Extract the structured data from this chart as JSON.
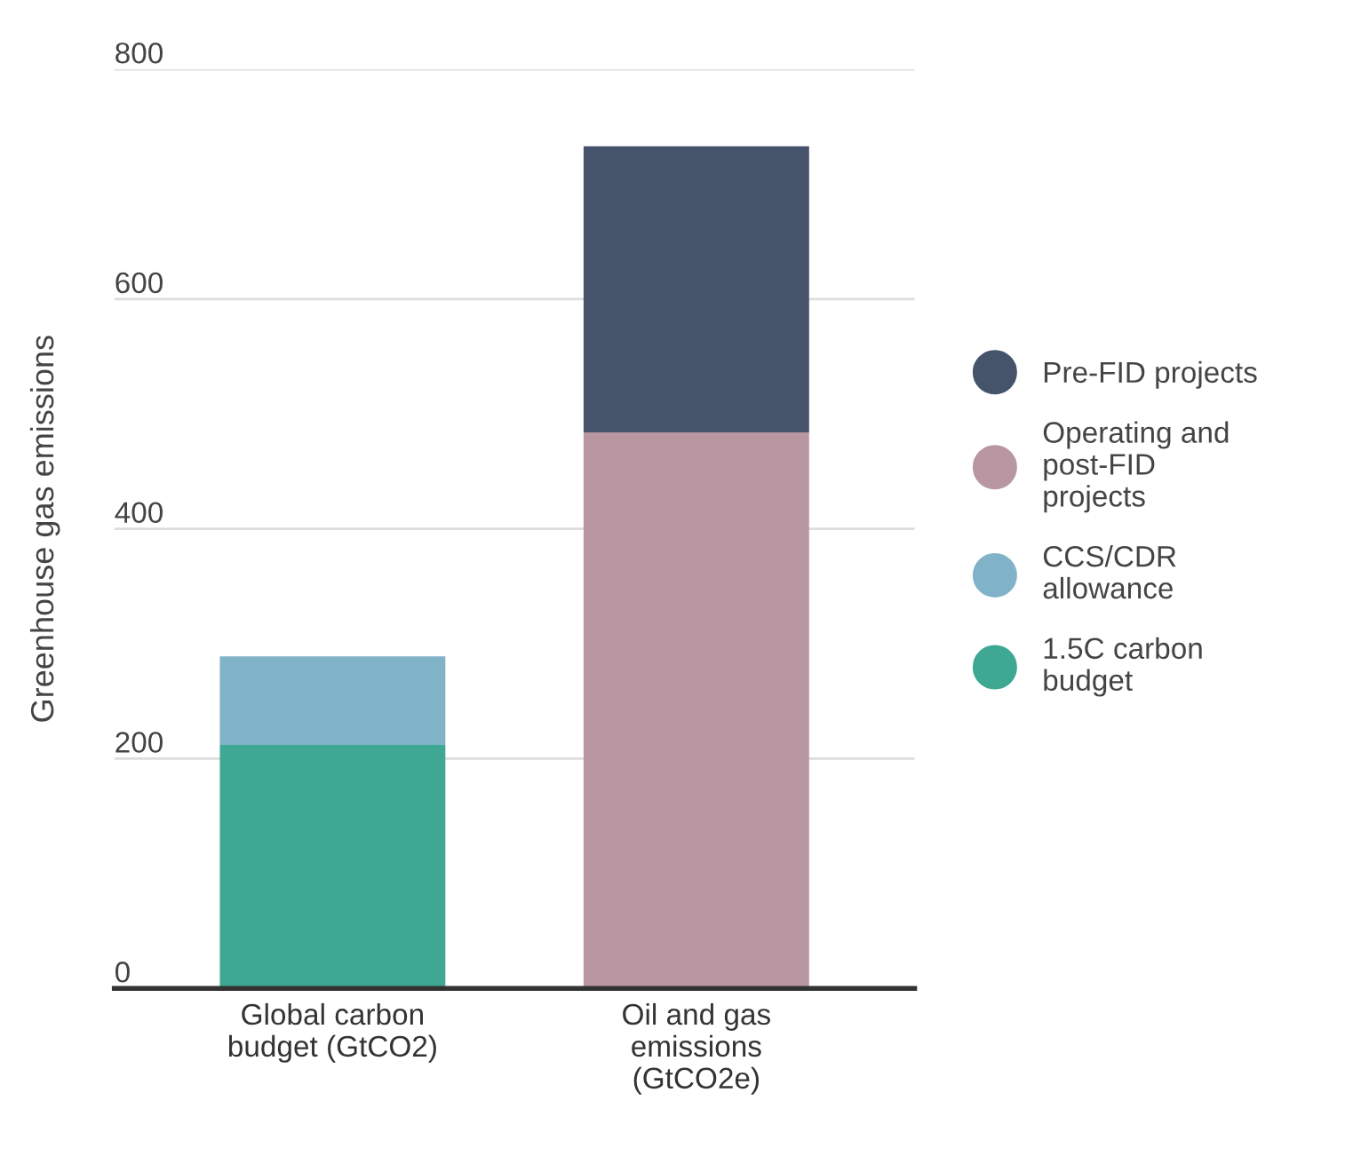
{
  "chart_data": {
    "type": "bar",
    "stacked": true,
    "ylabel": "Greenhouse gas emissions",
    "categories": [
      "Global carbon\nbudget (GtCO2)",
      "Oil and gas\nemissions\n(GtCO2e)"
    ],
    "series": [
      {
        "name": "1.5C carbon\nbudget",
        "color": "#3fa893",
        "values": [
          212,
          null
        ]
      },
      {
        "name": "CCS/CDR\nallowance",
        "color": "#80b2c8",
        "values": [
          77,
          null
        ]
      },
      {
        "name": "Operating and\npost-FID\nprojects",
        "color": "#b897a2",
        "values": [
          null,
          484
        ]
      },
      {
        "name": "Pre-FID projects",
        "color": "#45546b",
        "values": [
          null,
          249
        ]
      }
    ],
    "ylim": [
      0,
      800
    ],
    "yticks": [
      0,
      200,
      400,
      600,
      800
    ],
    "grid": "y",
    "legend": "right"
  }
}
